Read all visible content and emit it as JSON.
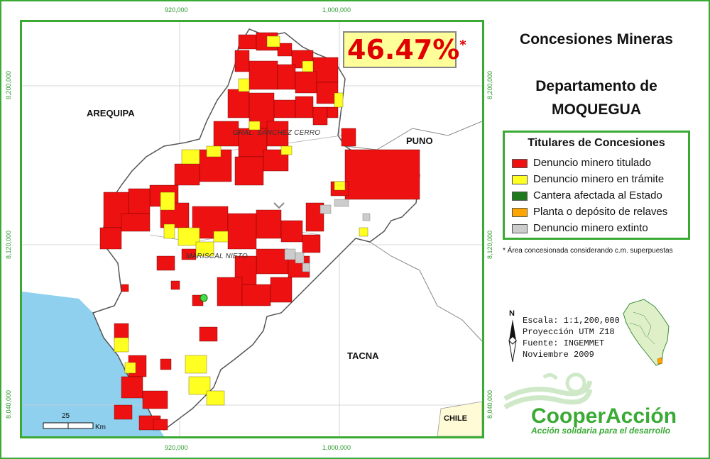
{
  "title": {
    "line1": "Concesiones Mineras",
    "line2": "Departamento de",
    "line3": "MOQUEGUA"
  },
  "percentage": {
    "value": "46.47%",
    "mark": "*"
  },
  "legend": {
    "title": "Titulares de Concesiones",
    "items": [
      {
        "label": "Denuncio minero titulado",
        "color": "#ee1111"
      },
      {
        "label": "Denuncio minero en trámite",
        "color": "#ffff22"
      },
      {
        "label": "Cantera afectada al Estado",
        "color": "#1f7a1f"
      },
      {
        "label": "Planta o depósito de relaves",
        "color": "#ffa500"
      },
      {
        "label": "Denuncio minero extinto",
        "color": "#cccccc"
      }
    ]
  },
  "note": "* Área concesionada considerando c.m. superpuestas",
  "info": {
    "scale": "Escala: 1:1,200,000",
    "projection": "Proyección UTM Z18",
    "source": "Fuente: INGEMMET",
    "date": "Noviembre 2009"
  },
  "north": "N",
  "regions": {
    "arequipa": "AREQUIPA",
    "puno": "PUNO",
    "tacna": "TACNA",
    "chile": "CHILE"
  },
  "provinces": {
    "sanchez_cerro": "GRAL. SANCHEZ CERRO",
    "mariscal_nieto": "MARISCAL NIETO"
  },
  "coords": {
    "x1": "920,000",
    "x2": "1,000,000",
    "y1": "8,200,000",
    "y2": "8,120,000",
    "y3": "8,040,000"
  },
  "scalebar": {
    "value": "25",
    "unit": "Km"
  },
  "brand": {
    "name": "CooperAcción",
    "tagline": "Acción solidaria para el desarrollo"
  },
  "colors": {
    "accent": "#3aaa35",
    "ocean": "#8fd0ef",
    "titled": "#ee1111",
    "pending": "#ffff22",
    "extinct": "#cccccc",
    "percentage": "#e00000"
  }
}
